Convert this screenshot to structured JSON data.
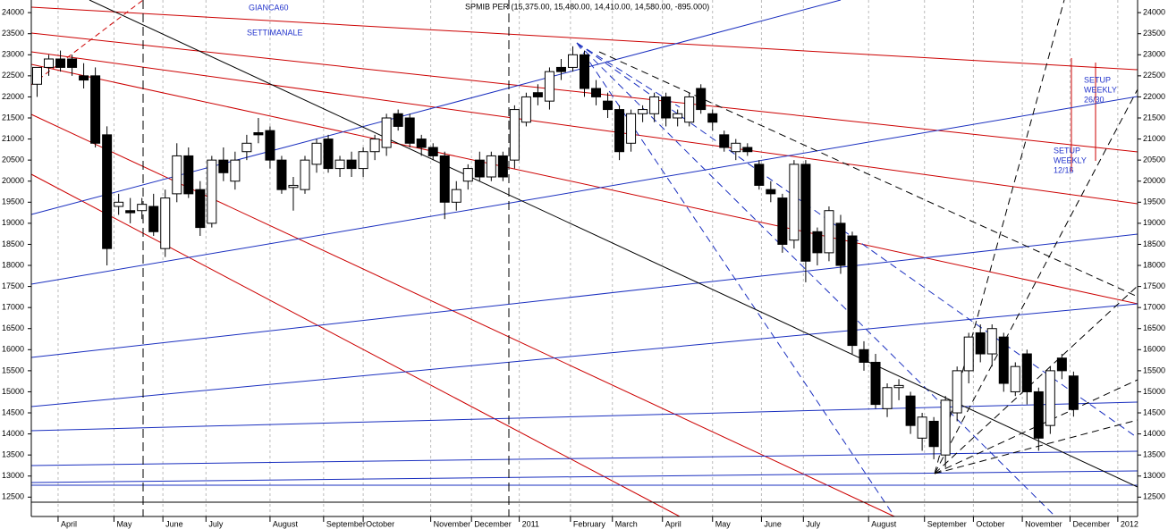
{
  "chart_data": {
    "type": "candlestick",
    "title": "SPMIB PER (15,375.00, 15,480.00, 14,410.00, 14,580.00, -895.000)",
    "annotations_top": [
      "GIANCA60",
      "SETTIMANALE"
    ],
    "annotations_setup": [
      [
        "SETUP",
        "WEEKLY",
        "26/30"
      ],
      [
        "SETUP",
        "WEEKLY",
        "12/16"
      ]
    ],
    "ylim": [
      12040,
      24300
    ],
    "yticks": [
      12500,
      13000,
      13500,
      14000,
      14500,
      15000,
      15500,
      16000,
      16500,
      17000,
      17500,
      18000,
      18500,
      19000,
      19500,
      20000,
      20500,
      21000,
      21500,
      22000,
      22500,
      23000,
      23500,
      24000
    ],
    "xlim": [
      -0.5,
      94.5
    ],
    "xticks": [
      {
        "value": 1.8,
        "label": "April"
      },
      {
        "value": 6.6,
        "label": "May"
      },
      {
        "value": 10.8,
        "label": "June"
      },
      {
        "value": 14.5,
        "label": "July"
      },
      {
        "value": 20,
        "label": "August"
      },
      {
        "value": 24.6,
        "label": "September"
      },
      {
        "value": 28,
        "label": "October"
      },
      {
        "value": 33.8,
        "label": "November"
      },
      {
        "value": 37.3,
        "label": "December"
      },
      {
        "value": 41.4,
        "label": "2011"
      },
      {
        "value": 45.8,
        "label": "February"
      },
      {
        "value": 49.4,
        "label": "March"
      },
      {
        "value": 53.7,
        "label": "April"
      },
      {
        "value": 58,
        "label": "May"
      },
      {
        "value": 62.2,
        "label": "June"
      },
      {
        "value": 65.8,
        "label": "July"
      },
      {
        "value": 71.4,
        "label": "August"
      },
      {
        "value": 76.2,
        "label": "September"
      },
      {
        "value": 80.4,
        "label": "October"
      },
      {
        "value": 84.6,
        "label": "November"
      },
      {
        "value": 88.7,
        "label": "December"
      },
      {
        "value": 92.8,
        "label": "2012"
      }
    ],
    "grid_x": true,
    "up_color": "#ffffff",
    "down_color": "#000000",
    "open": [
      22300,
      22700,
      22900,
      22900,
      22500,
      22500,
      21100,
      19400,
      19300,
      19300,
      19400,
      18400,
      19700,
      20600,
      19800,
      19000,
      20500,
      20000,
      20700,
      21150,
      21200,
      20500,
      19850,
      19800,
      20400,
      21000,
      20300,
      20500,
      20300,
      20700,
      20800,
      21600,
      21500,
      21000,
      20800,
      20600,
      19500,
      20000,
      20500,
      20100,
      20600,
      20500,
      21400,
      22100,
      21900,
      22700,
      22700,
      23000,
      22200,
      21900,
      21700,
      20900,
      21600,
      21600,
      22000,
      21500,
      21400,
      22200,
      21600,
      21100,
      20700,
      20800,
      20400,
      19800,
      19600,
      18600,
      20400,
      18800,
      18300,
      19000,
      18700,
      16000,
      15700,
      14600,
      15100,
      14900,
      13900,
      14300,
      13500,
      14500,
      15500,
      16400,
      15900,
      16300,
      15000,
      15900,
      15000,
      14200,
      15800,
      15375
    ],
    "high": [
      22700,
      23000,
      23100,
      23000,
      22800,
      22700,
      21300,
      19700,
      19600,
      19600,
      19700,
      19800,
      20900,
      20800,
      20000,
      20600,
      20800,
      20700,
      21100,
      21500,
      21300,
      20600,
      20100,
      20600,
      21000,
      21100,
      20600,
      20700,
      20800,
      21100,
      21600,
      21700,
      21600,
      21100,
      20900,
      20700,
      20000,
      20400,
      20700,
      20700,
      20700,
      21800,
      22100,
      22300,
      22700,
      22900,
      23200,
      23100,
      22400,
      22100,
      21800,
      21700,
      21800,
      22100,
      22100,
      21700,
      22100,
      22300,
      21700,
      21200,
      21000,
      20900,
      20500,
      20000,
      19700,
      20500,
      20500,
      18900,
      19400,
      19200,
      18800,
      16200,
      15900,
      15200,
      15300,
      15000,
      14500,
      14400,
      14900,
      15600,
      16400,
      16600,
      16600,
      16400,
      15700,
      16000,
      15100,
      15600,
      15900,
      15480
    ],
    "low": [
      22000,
      22500,
      22600,
      22500,
      22200,
      20800,
      18000,
      19200,
      19000,
      19100,
      18700,
      18200,
      19500,
      19600,
      18700,
      18900,
      20000,
      19800,
      20500,
      20900,
      20300,
      19700,
      19300,
      19700,
      20200,
      20200,
      20100,
      20100,
      20100,
      20500,
      20600,
      21200,
      20800,
      20600,
      20500,
      19100,
      19300,
      19800,
      20000,
      20000,
      20000,
      20300,
      21300,
      21800,
      21700,
      22400,
      22600,
      22000,
      21800,
      21500,
      20500,
      20700,
      21400,
      21400,
      21300,
      21300,
      21300,
      21600,
      21200,
      20700,
      20500,
      20600,
      19800,
      19500,
      18300,
      18400,
      17600,
      18000,
      18100,
      17800,
      15900,
      15500,
      14600,
      14400,
      14800,
      14000,
      13600,
      13400,
      13200,
      14300,
      15200,
      15700,
      15600,
      15000,
      14900,
      14700,
      13600,
      14000,
      15300,
      14410
    ],
    "close": [
      22700,
      22900,
      22700,
      22700,
      22400,
      20900,
      18400,
      19500,
      19250,
      19450,
      18800,
      19600,
      20600,
      19700,
      18900,
      20500,
      20200,
      20500,
      20900,
      21100,
      20500,
      19800,
      19900,
      20500,
      20900,
      20300,
      20500,
      20300,
      20700,
      21000,
      21500,
      21300,
      20900,
      20800,
      20600,
      19500,
      19800,
      20300,
      20100,
      20600,
      20100,
      21700,
      22000,
      22000,
      22600,
      22600,
      23000,
      22200,
      22000,
      21700,
      20700,
      21600,
      21700,
      22000,
      21500,
      21600,
      22000,
      21700,
      21400,
      20800,
      20900,
      20700,
      19900,
      19700,
      18500,
      20400,
      18100,
      18300,
      19300,
      18000,
      16100,
      15700,
      14700,
      15100,
      15150,
      14200,
      14400,
      13700,
      14800,
      15500,
      16300,
      15900,
      16500,
      15200,
      15600,
      15000,
      13900,
      15500,
      15500,
      14580
    ]
  }
}
